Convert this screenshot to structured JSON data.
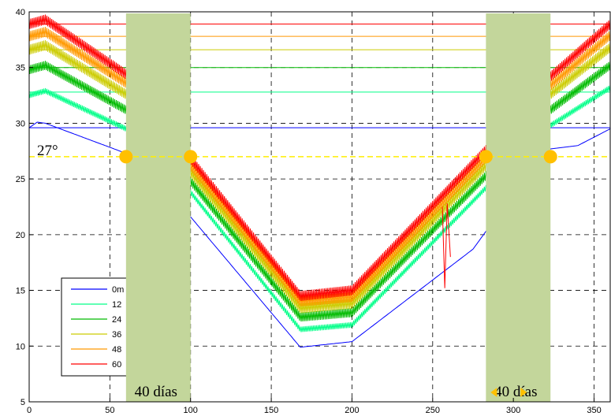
{
  "chart_data": {
    "type": "line",
    "xlim": [
      0,
      360
    ],
    "ylim": [
      5,
      40
    ],
    "x_ticks": [
      0,
      50,
      100,
      150,
      200,
      250,
      300,
      350
    ],
    "y_ticks": [
      5,
      10,
      15,
      20,
      25,
      30,
      35,
      40
    ],
    "grid": true,
    "legend_placement": "bottom-left",
    "reference_line": {
      "y": 27,
      "label": "27°",
      "color": "#ffee00"
    },
    "bands": [
      {
        "x_start": 60,
        "x_end": 100,
        "label": "40 días",
        "color": "#c3d69b"
      },
      {
        "x_start": 283,
        "x_end": 323,
        "label": "40 días",
        "color": "#c3d69b"
      }
    ],
    "markers": [
      {
        "x": 60,
        "y": 27,
        "color": "#ffc000"
      },
      {
        "x": 100,
        "y": 27,
        "color": "#ffc000"
      },
      {
        "x": 283,
        "y": 27,
        "color": "#ffc000"
      },
      {
        "x": 323,
        "y": 27,
        "color": "#ffc000"
      }
    ],
    "series": [
      {
        "name": "0m",
        "color": "#0000ff",
        "noise": 0,
        "mean": 29.6,
        "points": [
          [
            0,
            29.6
          ],
          [
            5,
            30.1
          ],
          [
            10,
            30.0
          ],
          [
            60,
            27.3
          ],
          [
            100,
            21.6
          ],
          [
            168,
            9.9
          ],
          [
            200,
            10.4
          ],
          [
            275,
            18.7
          ],
          [
            283,
            20.3
          ],
          [
            323,
            27.7
          ],
          [
            340,
            28.0
          ],
          [
            360,
            29.5
          ]
        ]
      },
      {
        "name": "12",
        "color": "#00ff88",
        "noise": 0.25,
        "mean": 32.8,
        "points": [
          [
            0,
            32.5
          ],
          [
            10,
            32.9
          ],
          [
            60,
            29.5
          ],
          [
            100,
            23.8
          ],
          [
            168,
            11.5
          ],
          [
            200,
            11.9
          ],
          [
            283,
            24.2
          ],
          [
            323,
            29.8
          ],
          [
            360,
            33.2
          ]
        ]
      },
      {
        "name": "24",
        "color": "#00bb00",
        "noise": 0.4,
        "mean": 35.0,
        "points": [
          [
            0,
            34.8
          ],
          [
            10,
            35.2
          ],
          [
            60,
            31.2
          ],
          [
            100,
            24.8
          ],
          [
            168,
            12.6
          ],
          [
            200,
            13.0
          ],
          [
            283,
            25.3
          ],
          [
            323,
            31.2
          ],
          [
            360,
            35.2
          ]
        ]
      },
      {
        "name": "36",
        "color": "#cccc00",
        "noise": 0.45,
        "mean": 36.6,
        "points": [
          [
            0,
            36.6
          ],
          [
            10,
            37.0
          ],
          [
            60,
            32.6
          ],
          [
            100,
            25.6
          ],
          [
            168,
            13.4
          ],
          [
            200,
            13.8
          ],
          [
            283,
            26.2
          ],
          [
            323,
            32.6
          ],
          [
            360,
            36.8
          ]
        ]
      },
      {
        "name": "48",
        "color": "#ff9900",
        "noise": 0.45,
        "mean": 37.8,
        "points": [
          [
            0,
            37.8
          ],
          [
            10,
            38.2
          ],
          [
            60,
            33.6
          ],
          [
            100,
            26.2
          ],
          [
            168,
            14.0
          ],
          [
            200,
            14.4
          ],
          [
            283,
            26.9
          ],
          [
            323,
            33.4
          ],
          [
            360,
            37.9
          ]
        ]
      },
      {
        "name": "60",
        "color": "#ff0000",
        "noise": 0.45,
        "mean": 38.9,
        "points": [
          [
            0,
            38.9
          ],
          [
            10,
            39.3
          ],
          [
            60,
            34.4
          ],
          [
            100,
            26.8
          ],
          [
            168,
            14.5
          ],
          [
            200,
            15.0
          ],
          [
            283,
            27.6
          ],
          [
            323,
            34.2
          ],
          [
            360,
            38.9
          ]
        ]
      }
    ]
  }
}
